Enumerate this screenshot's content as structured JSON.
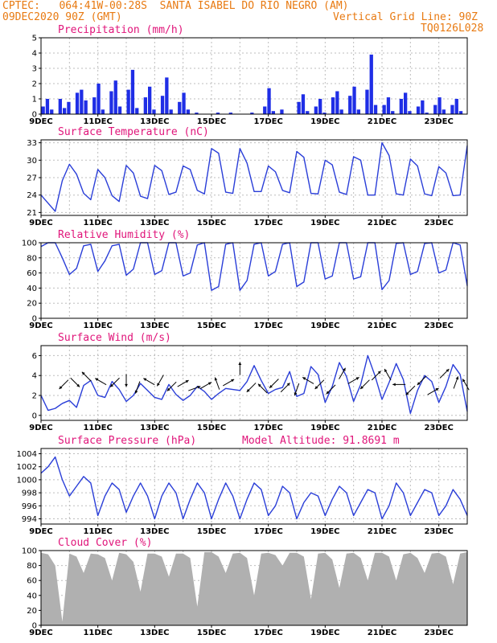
{
  "header": {
    "line1": "CPTEC:   064:41W-00:28S  SANTA ISABEL DO RIO NEGRO (AM)",
    "line2_left": "09DEC2020 90Z (GMT)",
    "line2_right": "Vertical Grid Line: 90Z",
    "line3_right": "TQ0126L028"
  },
  "colors": {
    "header": "#e87a12",
    "title": "#e0157a",
    "line": "#2a3ed8",
    "bar": "#1f2ee6",
    "cloud": "#b0b0b0",
    "grid": "#bdbdbd"
  },
  "chart_data": [
    {
      "id": "precip",
      "type": "bar",
      "title": "Precipitation (mm/h)",
      "ylim": [
        0,
        5
      ],
      "yticks": [
        0,
        1,
        2,
        3,
        4,
        5
      ],
      "x_start": "09DEC",
      "x_end": "24DEC",
      "x_tick_labels": [
        "9DEC",
        "11DEC",
        "13DEC",
        "15DEC",
        "17DEC",
        "19DEC",
        "21DEC",
        "23DEC"
      ],
      "values_6h_approx": [
        0.5,
        1.0,
        0.3,
        0.0,
        1.0,
        0.4,
        0.8,
        0.0,
        1.4,
        1.6,
        0.9,
        0.0,
        1.1,
        2.0,
        0.3,
        0.0,
        1.5,
        2.2,
        0.5,
        0.0,
        1.6,
        2.9,
        0.4,
        0.0,
        1.1,
        1.8,
        0.3,
        0.0,
        1.2,
        2.4,
        0.3,
        0.0,
        0.8,
        1.4,
        0.3,
        0.0,
        0.1,
        0.0,
        0.0,
        0.0,
        0.0,
        0.1,
        0.0,
        0.0,
        0.1,
        0.0,
        0.0,
        0.0,
        0.0,
        0.1,
        0.0,
        0.0,
        0.5,
        1.7,
        0.2,
        0.0,
        0.3,
        0.0,
        0.0,
        0.0,
        0.8,
        1.3,
        0.2,
        0.0,
        0.5,
        1.0,
        0.1,
        0.0,
        1.1,
        1.5,
        0.3,
        0.0,
        1.2,
        1.8,
        0.3,
        0.0,
        1.6,
        3.9,
        0.6,
        0.0,
        0.6,
        1.1,
        0.2,
        0.0,
        1.0,
        1.4,
        0.2,
        0.0,
        0.5,
        0.9,
        0.1,
        0.0,
        0.6,
        1.1,
        0.3,
        0.0,
        0.6,
        1.0,
        0.2,
        0.0
      ]
    },
    {
      "id": "temp",
      "type": "line",
      "title": "Surface Temperature (nC)",
      "ylim": [
        20.5,
        33.5
      ],
      "yticks": [
        21,
        24,
        27,
        30,
        33
      ],
      "x_start": "09DEC",
      "x_end": "24DEC",
      "x_tick_labels": [
        "9DEC",
        "11DEC",
        "13DEC",
        "15DEC",
        "17DEC",
        "19DEC",
        "21DEC",
        "23DEC"
      ],
      "x_days": [
        0,
        0.25,
        0.5,
        0.75,
        1,
        1.25,
        1.5,
        1.75,
        2,
        2.25,
        2.5,
        2.75,
        3,
        3.25,
        3.5,
        3.75,
        4,
        4.25,
        4.5,
        4.75,
        5,
        5.25,
        5.5,
        5.75,
        6,
        6.25,
        6.5,
        6.75,
        7,
        7.25,
        7.5,
        7.75,
        8,
        8.25,
        8.5,
        8.75,
        9,
        9.25,
        9.5,
        9.75,
        10,
        10.25,
        10.5,
        10.75,
        11,
        11.25,
        11.5,
        11.75,
        12,
        12.25,
        12.5,
        12.75,
        13,
        13.25,
        13.5,
        13.75,
        14,
        14.25,
        14.5,
        14.75,
        15
      ],
      "values": [
        24,
        22.6,
        21.2,
        26.5,
        29.3,
        27.6,
        24.3,
        23.2,
        28.4,
        27.0,
        23.9,
        22.9,
        29.1,
        27.8,
        23.8,
        23.4,
        29.1,
        28.2,
        24.1,
        24.5,
        29.0,
        28.4,
        24.8,
        24.2,
        32.0,
        31.2,
        24.5,
        24.3,
        32.0,
        29.5,
        24.6,
        24.6,
        29.0,
        28.0,
        24.8,
        24.4,
        31.5,
        30.5,
        24.3,
        24.2,
        30.0,
        29.2,
        24.5,
        24.1,
        30.6,
        30.0,
        24.0,
        24.0,
        33.0,
        30.8,
        24.2,
        24.0,
        30.2,
        29.0,
        24.2,
        23.9,
        28.9,
        27.8,
        23.9,
        24.0,
        32.5
      ]
    },
    {
      "id": "rh",
      "type": "line",
      "title": "Relative Humidity (%)",
      "ylim": [
        0,
        100
      ],
      "yticks": [
        0,
        20,
        40,
        60,
        80,
        100
      ],
      "x_start": "09DEC",
      "x_end": "24DEC",
      "x_tick_labels": [
        "9DEC",
        "11DEC",
        "13DEC",
        "15DEC",
        "17DEC",
        "19DEC",
        "21DEC",
        "23DEC"
      ],
      "x_days": [
        0,
        0.25,
        0.5,
        0.75,
        1,
        1.25,
        1.5,
        1.75,
        2,
        2.25,
        2.5,
        2.75,
        3,
        3.25,
        3.5,
        3.75,
        4,
        4.25,
        4.5,
        4.75,
        5,
        5.25,
        5.5,
        5.75,
        6,
        6.25,
        6.5,
        6.75,
        7,
        7.25,
        7.5,
        7.75,
        8,
        8.25,
        8.5,
        8.75,
        9,
        9.25,
        9.5,
        9.75,
        10,
        10.25,
        10.5,
        10.75,
        11,
        11.25,
        11.5,
        11.75,
        12,
        12.25,
        12.5,
        12.75,
        13,
        13.25,
        13.5,
        13.75,
        14,
        14.25,
        14.5,
        14.75,
        15
      ],
      "values": [
        95,
        100,
        100,
        80,
        58,
        66,
        96,
        98,
        62,
        76,
        96,
        98,
        57,
        65,
        100,
        100,
        58,
        63,
        100,
        100,
        56,
        60,
        97,
        100,
        37,
        42,
        98,
        100,
        37,
        50,
        98,
        100,
        56,
        62,
        98,
        100,
        42,
        48,
        100,
        100,
        52,
        56,
        100,
        100,
        52,
        55,
        100,
        100,
        38,
        50,
        99,
        100,
        58,
        62,
        99,
        100,
        60,
        64,
        100,
        97,
        43
      ]
    },
    {
      "id": "wind",
      "type": "line",
      "title": "Surface Wind (m/s)",
      "ylim": [
        -0.5,
        7
      ],
      "yticks": [
        0,
        2,
        4,
        6
      ],
      "x_start": "09DEC",
      "x_end": "24DEC",
      "x_tick_labels": [
        "9DEC",
        "11DEC",
        "13DEC",
        "15DEC",
        "17DEC",
        "19DEC",
        "21DEC",
        "23DEC"
      ],
      "x_days": [
        0,
        0.25,
        0.5,
        0.75,
        1,
        1.25,
        1.5,
        1.75,
        2,
        2.25,
        2.5,
        2.75,
        3,
        3.25,
        3.5,
        3.75,
        4,
        4.25,
        4.5,
        4.75,
        5,
        5.25,
        5.5,
        5.75,
        6,
        6.25,
        6.5,
        6.75,
        7,
        7.25,
        7.5,
        7.75,
        8,
        8.25,
        8.5,
        8.75,
        9,
        9.25,
        9.5,
        9.75,
        10,
        10.25,
        10.5,
        10.75,
        11,
        11.25,
        11.5,
        11.75,
        12,
        12.25,
        12.5,
        12.75,
        13,
        13.25,
        13.5,
        13.75,
        14,
        14.25,
        14.5,
        14.75,
        15
      ],
      "values": [
        2.0,
        0.5,
        0.7,
        1.2,
        1.5,
        0.8,
        3.0,
        3.5,
        2.0,
        1.8,
        3.4,
        2.6,
        1.4,
        2.0,
        3.2,
        2.5,
        1.8,
        1.6,
        3.1,
        2.1,
        1.5,
        2.0,
        2.9,
        2.4,
        1.6,
        2.2,
        2.7,
        2.6,
        2.5,
        3.4,
        5.0,
        3.5,
        2.2,
        2.6,
        2.8,
        4.4,
        1.9,
        2.2,
        4.9,
        4.1,
        1.3,
        2.9,
        5.3,
        3.9,
        1.4,
        3.1,
        6.0,
        4.0,
        1.6,
        3.3,
        5.2,
        3.6,
        0.2,
        2.5,
        4.0,
        3.4,
        1.3,
        2.9,
        5.1,
        4.1,
        0.4
      ],
      "vectors_approx": [
        [
          0.8,
          3.1,
          225
        ],
        [
          1.2,
          3.3,
          135
        ],
        [
          1.6,
          3.9,
          315
        ],
        [
          2.1,
          3.4,
          300
        ],
        [
          2.6,
          3.3,
          225
        ],
        [
          3.0,
          3.5,
          180
        ],
        [
          3.4,
          2.8,
          200
        ],
        [
          3.8,
          3.4,
          300
        ],
        [
          4.2,
          3.5,
          210
        ],
        [
          4.6,
          2.9,
          225
        ],
        [
          5.0,
          3.2,
          60
        ],
        [
          5.4,
          2.7,
          70
        ],
        [
          5.8,
          3.0,
          60
        ],
        [
          6.2,
          3.2,
          340
        ],
        [
          6.6,
          3.3,
          60
        ],
        [
          7.0,
          4.7,
          0
        ],
        [
          7.4,
          2.8,
          225
        ],
        [
          7.8,
          2.7,
          315
        ],
        [
          8.2,
          3.2,
          225
        ],
        [
          8.6,
          2.8,
          45
        ],
        [
          9.0,
          2.6,
          200
        ],
        [
          9.4,
          3.5,
          300
        ],
        [
          9.8,
          3.1,
          225
        ],
        [
          10.2,
          2.6,
          225
        ],
        [
          10.6,
          4.2,
          30
        ],
        [
          11.0,
          3.5,
          60
        ],
        [
          11.4,
          3.1,
          225
        ],
        [
          11.8,
          4.0,
          45
        ],
        [
          12.2,
          4.1,
          330
        ],
        [
          12.6,
          3.1,
          270
        ],
        [
          13.0,
          2.5,
          225
        ],
        [
          13.4,
          3.5,
          225
        ],
        [
          13.8,
          2.4,
          60
        ],
        [
          14.2,
          4.2,
          45
        ],
        [
          14.6,
          3.3,
          20
        ],
        [
          14.95,
          3.1,
          330
        ]
      ]
    },
    {
      "id": "press",
      "type": "line",
      "title": "Surface Pressure (hPa)",
      "annotation": "Model Altitude: 91.8691 m",
      "ylim": [
        993.2,
        1004.8
      ],
      "yticks": [
        994,
        996,
        998,
        1000,
        1002,
        1004
      ],
      "x_start": "09DEC",
      "x_end": "24DEC",
      "x_tick_labels": [
        "9DEC",
        "11DEC",
        "13DEC",
        "15DEC",
        "17DEC",
        "19DEC",
        "21DEC",
        "23DEC"
      ],
      "x_days": [
        0,
        0.25,
        0.5,
        0.75,
        1,
        1.25,
        1.5,
        1.75,
        2,
        2.25,
        2.5,
        2.75,
        3,
        3.25,
        3.5,
        3.75,
        4,
        4.25,
        4.5,
        4.75,
        5,
        5.25,
        5.5,
        5.75,
        6,
        6.25,
        6.5,
        6.75,
        7,
        7.25,
        7.5,
        7.75,
        8,
        8.25,
        8.5,
        8.75,
        9,
        9.25,
        9.5,
        9.75,
        10,
        10.25,
        10.5,
        10.75,
        11,
        11.25,
        11.5,
        11.75,
        12,
        12.25,
        12.5,
        12.75,
        13,
        13.25,
        13.5,
        13.75,
        14,
        14.25,
        14.5,
        14.75,
        15
      ],
      "values": [
        1001,
        1002,
        1003.5,
        1000,
        997.5,
        999,
        1000.5,
        999.5,
        994.5,
        997.5,
        999.5,
        998.5,
        995,
        997.5,
        999.5,
        997.5,
        994,
        997.5,
        999.5,
        998,
        994,
        997,
        999.5,
        998,
        994,
        997,
        999.5,
        997.5,
        994,
        997,
        999.5,
        998.5,
        994.5,
        996,
        999,
        998,
        994,
        996.5,
        998,
        997.5,
        994.5,
        997,
        999,
        998,
        994.5,
        996.5,
        998.5,
        998,
        994,
        996,
        999.5,
        998,
        994.5,
        996.5,
        998.5,
        998,
        994.5,
        996,
        998.5,
        997,
        994.5
      ]
    },
    {
      "id": "cloud",
      "type": "area",
      "title": "Cloud Cover (%)",
      "ylim": [
        0,
        100
      ],
      "yticks": [
        0,
        20,
        40,
        60,
        80,
        100
      ],
      "x_start": "09DEC",
      "x_end": "24DEC",
      "x_tick_labels": [
        "9DEC",
        "11DEC",
        "13DEC",
        "15DEC",
        "17DEC",
        "19DEC",
        "21DEC",
        "23DEC"
      ],
      "x_days": [
        0,
        0.25,
        0.5,
        0.75,
        1,
        1.25,
        1.5,
        1.75,
        2,
        2.25,
        2.5,
        2.75,
        3,
        3.25,
        3.5,
        3.75,
        4,
        4.25,
        4.5,
        4.75,
        5,
        5.25,
        5.5,
        5.75,
        6,
        6.25,
        6.5,
        6.75,
        7,
        7.25,
        7.5,
        7.75,
        8,
        8.25,
        8.5,
        8.75,
        9,
        9.25,
        9.5,
        9.75,
        10,
        10.25,
        10.5,
        10.75,
        11,
        11.25,
        11.5,
        11.75,
        12,
        12.25,
        12.5,
        12.75,
        13,
        13.25,
        13.5,
        13.75,
        14,
        14.25,
        14.5,
        14.75,
        15
      ],
      "values": [
        97,
        95,
        80,
        5,
        96,
        92,
        70,
        96,
        95,
        90,
        60,
        97,
        95,
        85,
        45,
        96,
        96,
        92,
        65,
        96,
        96,
        90,
        25,
        98,
        98,
        92,
        70,
        96,
        97,
        90,
        40,
        96,
        97,
        94,
        80,
        97,
        97,
        92,
        35,
        96,
        97,
        88,
        50,
        96,
        97,
        90,
        60,
        97,
        97,
        92,
        60,
        95,
        97,
        90,
        70,
        96,
        97,
        92,
        55,
        96,
        98
      ]
    }
  ]
}
